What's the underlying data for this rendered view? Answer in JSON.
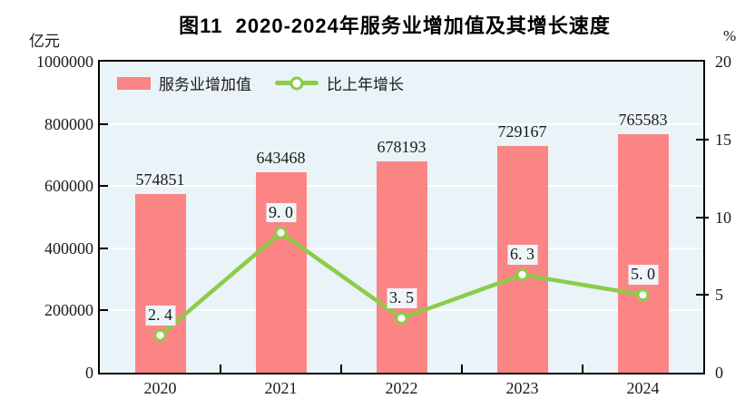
{
  "title": "图11  2020-2024年服务业增加值及其增长速度",
  "axes": {
    "left": {
      "unit": "亿元",
      "ticks": [
        0,
        200000,
        400000,
        600000,
        800000,
        1000000
      ],
      "max": 1000000
    },
    "right": {
      "unit": "%",
      "ticks": [
        0,
        5,
        10,
        15,
        20
      ],
      "max": 20
    }
  },
  "legend": {
    "bar_label": "服务业增加值",
    "line_label": "比上年增长"
  },
  "colors": {
    "bar": "#fb8585",
    "line": "#8ecb49",
    "marker_fill": "#ffffff",
    "plot_bg": "#eaf3f8",
    "grid": "#ffffff",
    "border": "#000000",
    "text": "#1a1a1a",
    "label_bg": "#eef6fa"
  },
  "chart_data": {
    "type": "bar",
    "subtype": "bar+line combo",
    "title": "图11 2020-2024年服务业增加值及其增长速度",
    "categories": [
      "2020",
      "2021",
      "2022",
      "2023",
      "2024"
    ],
    "series": [
      {
        "name": "服务业增加值",
        "type": "bar",
        "axis": "left",
        "values": [
          574851,
          643468,
          678193,
          729167,
          765583
        ],
        "labels": [
          "574851",
          "643468",
          "678193",
          "729167",
          "765583"
        ]
      },
      {
        "name": "比上年增长",
        "type": "line",
        "axis": "right",
        "values": [
          2.4,
          9.0,
          3.5,
          6.3,
          5.0
        ],
        "labels": [
          "2. 4",
          "9. 0",
          "3. 5",
          "6. 3",
          "5. 0"
        ]
      }
    ],
    "ylabel_left": "亿元",
    "ylabel_right": "%",
    "ylim_left": [
      0,
      1000000
    ],
    "ylim_right": [
      0,
      20
    ],
    "grid": true,
    "legend_position": "top-left-inside"
  }
}
